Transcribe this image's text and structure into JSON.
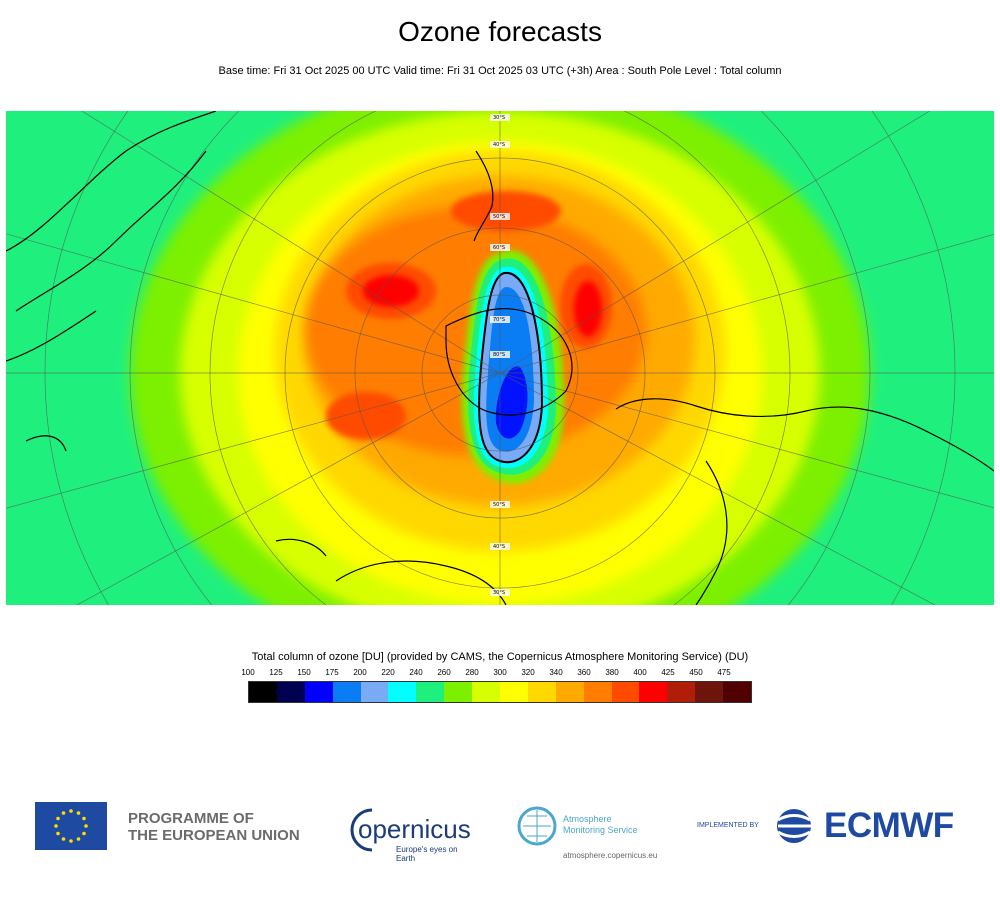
{
  "header": {
    "title": "Ozone forecasts",
    "subtitle": "Base time: Fri 31 Oct 2025 00 UTC Valid time: Fri 31 Oct 2025 03 UTC (+3h) Area : South Pole Level : Total column"
  },
  "map": {
    "projection": "polar stereographic",
    "area": "South Pole",
    "latitude_labels": [
      "30°S",
      "40°S",
      "50°S",
      "60°S",
      "70°S",
      "80°S"
    ],
    "colors": {
      "ocean_background": "#1ff07d",
      "coastline": "#000000",
      "grid": "#555555"
    }
  },
  "legend": {
    "title": "Total column of ozone [DU] (provided by CAMS, the Copernicus Atmosphere Monitoring Service) (DU)",
    "ticks": [
      "100",
      "125",
      "150",
      "175",
      "200",
      "220",
      "240",
      "260",
      "280",
      "300",
      "320",
      "340",
      "360",
      "380",
      "400",
      "425",
      "450",
      "475"
    ],
    "colors": [
      "#000000",
      "#000050",
      "#0000ff",
      "#0a7df5",
      "#78aaf5",
      "#00ffff",
      "#1ff07d",
      "#7cf000",
      "#d7ff00",
      "#ffff00",
      "#ffd800",
      "#ffaa00",
      "#ff7d00",
      "#ff4b00",
      "#ff0000",
      "#b01e0a",
      "#6e140a",
      "#500000"
    ]
  },
  "footer": {
    "eu_line1": "PROGRAMME OF",
    "eu_line2": "THE EUROPEAN UNION",
    "copernicus_logo_text": "opernicus",
    "copernicus_tagline": "Europe's eyes on Earth",
    "cams_line1": "Atmosphere",
    "cams_line2": "Monitoring Service",
    "cams_url": "atmosphere.copernicus.eu",
    "implemented_by": "IMPLEMENTED BY",
    "ecmwf": "ECMWF"
  }
}
